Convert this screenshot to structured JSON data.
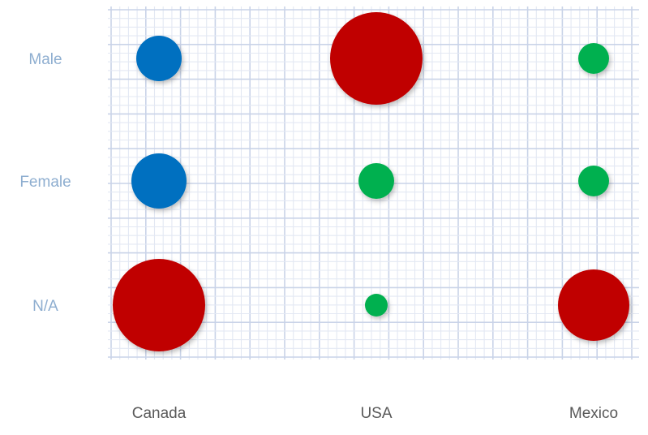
{
  "chart_data": {
    "type": "scatter",
    "x_categories": [
      "Canada",
      "USA",
      "Mexico"
    ],
    "y_categories": [
      "Male",
      "Female",
      "N/A"
    ],
    "points": [
      {
        "x": "Canada",
        "y": "Male",
        "size": 28,
        "color_group": "blue"
      },
      {
        "x": "USA",
        "y": "Male",
        "size": 57,
        "color_group": "red"
      },
      {
        "x": "Mexico",
        "y": "Male",
        "size": 19,
        "color_group": "green"
      },
      {
        "x": "Canada",
        "y": "Female",
        "size": 34,
        "color_group": "blue"
      },
      {
        "x": "USA",
        "y": "Female",
        "size": 22,
        "color_group": "green"
      },
      {
        "x": "Mexico",
        "y": "Female",
        "size": 19,
        "color_group": "green"
      },
      {
        "x": "Canada",
        "y": "N/A",
        "size": 57,
        "color_group": "red"
      },
      {
        "x": "USA",
        "y": "N/A",
        "size": 14,
        "color_group": "green"
      },
      {
        "x": "Mexico",
        "y": "N/A",
        "size": 44,
        "color_group": "red"
      }
    ],
    "colors": {
      "blue": "#0070c0",
      "red": "#c00000",
      "green": "#00b050",
      "y_label": "#8eaed0",
      "x_label": "#595959",
      "grid_minor": "#e3e8f3",
      "grid_major": "#c9d3e8"
    },
    "grid": true,
    "legend": "none"
  }
}
